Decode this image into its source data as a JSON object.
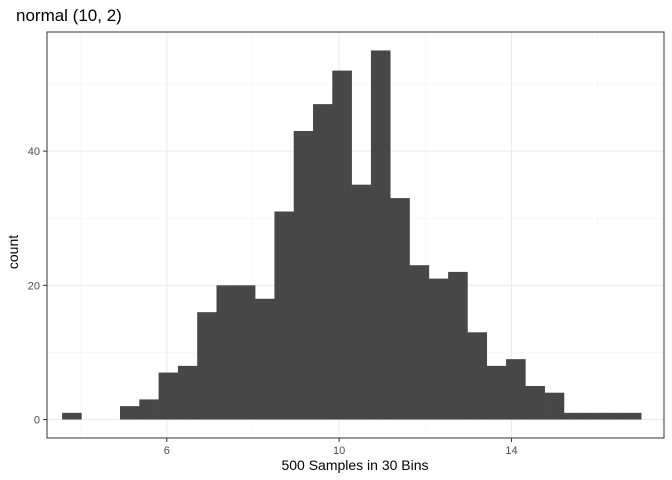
{
  "chart_data": {
    "type": "bar",
    "title": "normal (10, 2)",
    "xlabel": "500 Samples in 30 Bins",
    "ylabel": "count",
    "xlim": [
      3.22,
      17.54
    ],
    "ylim": [
      -2.75,
      57.75
    ],
    "x_ticks": [
      6,
      10,
      14
    ],
    "y_ticks": [
      0,
      20,
      40
    ],
    "x_tick_labels": [
      "6",
      "10",
      "14"
    ],
    "y_tick_labels": [
      "0",
      "20",
      "40"
    ],
    "bin_width": 0.448,
    "bin_edges_start": 3.57,
    "values": [
      1,
      0,
      0,
      2,
      3,
      7,
      8,
      16,
      20,
      20,
      18,
      31,
      43,
      47,
      52,
      35,
      55,
      33,
      23,
      21,
      22,
      13,
      8,
      9,
      5,
      4,
      1,
      1,
      1,
      1
    ],
    "grid": true,
    "legend": "none",
    "colors": {
      "bar": "#474747",
      "panel_background": "#FFFFFF",
      "panel_border": "#333333",
      "grid_major": "#EBEBEB",
      "grid_minor": "#F5F5F5"
    }
  }
}
